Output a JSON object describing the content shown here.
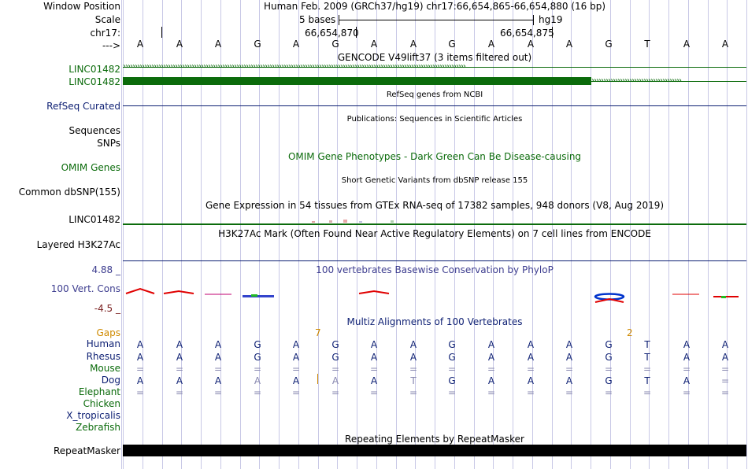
{
  "ruler": {
    "window_position_label": "Window Position",
    "window_position_value": "Human Feb. 2009 (GRCh37/hg19)   chr17:66,654,865-66,654,880 (16 bp)",
    "scale_label": "Scale",
    "scale_value": "5 bases",
    "scale_db": "hg19",
    "chrom_label": "chr17:",
    "coord_left": "66,654,870",
    "coord_right": "66,654,875",
    "arrow_label": "--->",
    "sequence": [
      "A",
      "A",
      "A",
      "G",
      "A",
      "G",
      "A",
      "A",
      "G",
      "A",
      "A",
      "A",
      "G",
      "T",
      "A",
      "A"
    ]
  },
  "tracks": {
    "gencode": {
      "title": "GENCODE V49lift37 (3 items filtered out)",
      "gene1": "LINC01482",
      "gene2": "LINC01482"
    },
    "refseq": {
      "title": "RefSeq genes from NCBI",
      "label": "RefSeq Curated"
    },
    "publications": {
      "title": "Publications: Sequences in Scientific Articles",
      "label_sequences": "Sequences",
      "label_snps": "SNPs"
    },
    "omim": {
      "title": "OMIM Gene Phenotypes - Dark Green Can Be Disease-causing",
      "label": "OMIM Genes"
    },
    "dbsnp": {
      "title": "Short Genetic Variants from dbSNP release 155",
      "label": "Common dbSNP(155)"
    },
    "gtex": {
      "title": "Gene Expression in 54 tissues from GTEx RNA-seq of 17382 samples, 948 donors (V8, Aug 2019)",
      "label": "LINC01482"
    },
    "h3k27ac": {
      "title": "H3K27Ac Mark (Often Found Near Active Regulatory Elements) on 7 cell lines from ENCODE",
      "label": "Layered H3K27Ac"
    },
    "conservation": {
      "title": "100 vertebrates Basewise Conservation by PhyloP",
      "label": "100 Vert. Cons",
      "max": "4.88 _",
      "min": "-4.5 _"
    },
    "multiz": {
      "title": "Multiz Alignments of 100 Vertebrates",
      "gaps_label": "Gaps",
      "gap1": "7",
      "gap2": "2",
      "species": [
        {
          "name": "Human",
          "bases": [
            "A",
            "A",
            "A",
            "G",
            "A",
            "G",
            "A",
            "A",
            "G",
            "A",
            "A",
            "A",
            "G",
            "T",
            "A",
            "A"
          ]
        },
        {
          "name": "Rhesus",
          "bases": [
            "A",
            "A",
            "A",
            "G",
            "A",
            "G",
            "A",
            "A",
            "G",
            "A",
            "A",
            "A",
            "G",
            "T",
            "A",
            "A"
          ]
        },
        {
          "name": "Mouse",
          "bases": [
            "=",
            "=",
            "=",
            "=",
            "=",
            "=",
            "=",
            "=",
            "=",
            "=",
            "=",
            "=",
            "=",
            "=",
            "=",
            "="
          ]
        },
        {
          "name": "Dog",
          "bases": [
            "A",
            "A",
            "A",
            "A",
            "A",
            "A",
            "A",
            "T",
            "G",
            "A",
            "A",
            "A",
            "G",
            "T",
            "A",
            "="
          ]
        },
        {
          "name": "Elephant",
          "bases": [
            "=",
            "=",
            "=",
            "=",
            "=",
            "=",
            "=",
            "=",
            "=",
            "=",
            "=",
            "=",
            "=",
            "=",
            "=",
            "="
          ]
        },
        {
          "name": "Chicken",
          "bases": []
        },
        {
          "name": "X_tropicalis",
          "bases": []
        },
        {
          "name": "Zebrafish",
          "bases": []
        }
      ]
    },
    "repeatmasker": {
      "title": "Repeating Elements by RepeatMasker",
      "label": "RepeatMasker"
    }
  },
  "colors": {
    "dark_green": "#0b6b0b",
    "navy": "#0d1f73",
    "grid": "#c8c8e6",
    "orange": "#cf8a00"
  }
}
